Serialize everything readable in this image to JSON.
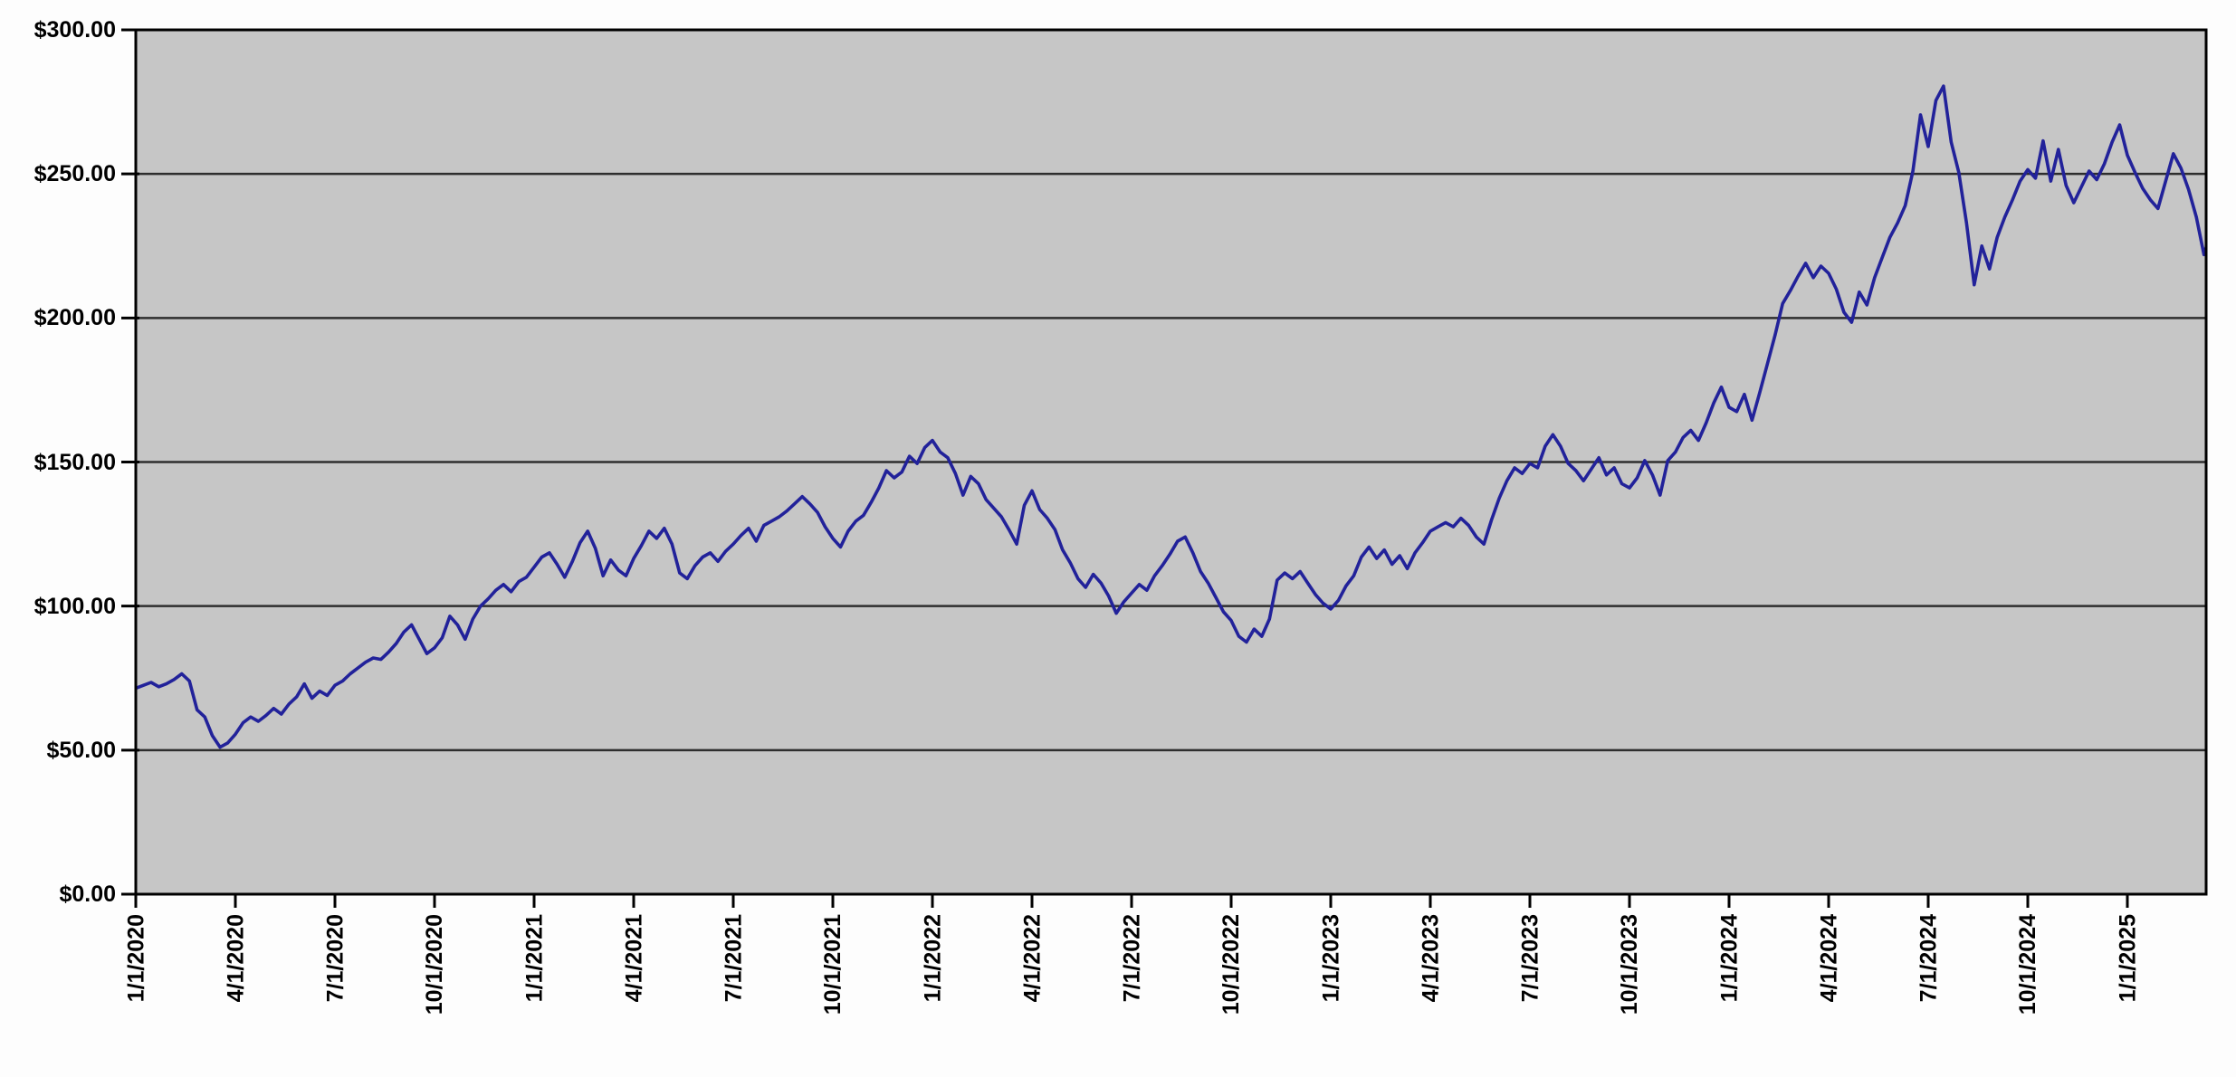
{
  "page": {
    "background_color": "#fdfdfd"
  },
  "chart_data": {
    "type": "line",
    "title": "",
    "legend": "none",
    "grid": "horizontal",
    "plot": {
      "background_color": "#c6c6c6",
      "border_color": "#000000",
      "gridline_color": "#2e2e2e"
    },
    "y_axis": {
      "min": 0,
      "max": 300,
      "step": 50,
      "format": "currency",
      "tick_labels": [
        "$300.00",
        "$250.00",
        "$200.00",
        "$150.00",
        "$100.00",
        "$50.00",
        "$0.00"
      ]
    },
    "x_axis": {
      "tick_interval": "quarterly",
      "label_rotation_deg": 90,
      "tick_labels": [
        "1/1/2020",
        "4/1/2020",
        "7/1/2020",
        "10/1/2020",
        "1/1/2021",
        "4/1/2021",
        "7/1/2021",
        "10/1/2021",
        "1/1/2022",
        "4/1/2022",
        "7/1/2022",
        "10/1/2022",
        "1/1/2023",
        "4/1/2023",
        "7/1/2023",
        "10/1/2023",
        "1/1/2024",
        "4/1/2024",
        "7/1/2024",
        "10/1/2024",
        "1/1/2025"
      ]
    },
    "series": [
      {
        "name": "price",
        "color": "#22229a",
        "sampling": "weekly",
        "start": "1/1/2020",
        "values": [
          71.5,
          72.5,
          73.5,
          72.0,
          73.0,
          74.5,
          76.5,
          74.0,
          64.0,
          61.5,
          55.0,
          51.0,
          52.5,
          55.5,
          59.5,
          61.5,
          60.0,
          62.0,
          64.5,
          62.5,
          66.0,
          68.5,
          73.0,
          68.0,
          70.5,
          69.0,
          72.5,
          74.0,
          76.5,
          78.5,
          80.5,
          82.0,
          81.5,
          84.0,
          87.0,
          91.0,
          93.5,
          88.5,
          83.5,
          85.5,
          89.0,
          96.5,
          93.5,
          88.5,
          95.5,
          100.0,
          102.5,
          105.5,
          107.5,
          105.0,
          108.5,
          110.0,
          113.5,
          117.0,
          118.5,
          114.5,
          110.0,
          115.5,
          122.0,
          126.0,
          120.0,
          110.5,
          116.0,
          112.5,
          110.5,
          116.5,
          121.0,
          126.0,
          123.5,
          127.0,
          121.5,
          111.5,
          109.5,
          114.0,
          117.0,
          118.5,
          115.5,
          119.0,
          121.5,
          124.5,
          127.0,
          122.5,
          128.0,
          129.5,
          131.0,
          133.0,
          135.5,
          138.0,
          135.5,
          132.5,
          127.5,
          123.5,
          120.5,
          126.0,
          129.5,
          131.5,
          136.0,
          141.0,
          147.0,
          144.5,
          146.5,
          152.0,
          149.5,
          155.0,
          157.5,
          153.5,
          151.5,
          146.0,
          138.5,
          145.0,
          142.5,
          137.0,
          134.0,
          131.0,
          126.5,
          121.5,
          135.0,
          140.0,
          133.5,
          130.5,
          126.5,
          119.5,
          115.0,
          109.5,
          106.5,
          111.0,
          108.0,
          103.5,
          97.5,
          101.5,
          104.5,
          107.5,
          105.5,
          110.5,
          114.0,
          118.0,
          122.5,
          124.0,
          118.5,
          112.0,
          108.0,
          103.0,
          98.0,
          95.0,
          89.5,
          87.5,
          92.0,
          89.5,
          95.5,
          109.0,
          111.5,
          109.5,
          112.0,
          108.0,
          104.0,
          101.0,
          99.0,
          102.0,
          107.0,
          110.5,
          117.0,
          120.5,
          116.5,
          119.5,
          114.5,
          117.5,
          113.0,
          118.5,
          122.0,
          126.0,
          127.5,
          129.0,
          127.5,
          130.5,
          128.0,
          124.0,
          121.5,
          130.0,
          137.5,
          143.5,
          148.0,
          146.0,
          149.5,
          148.0,
          155.5,
          159.5,
          155.5,
          149.5,
          147.0,
          143.5,
          147.5,
          151.5,
          145.5,
          148.0,
          142.5,
          141.0,
          144.5,
          150.5,
          145.5,
          138.5,
          150.5,
          153.5,
          158.5,
          161.0,
          157.5,
          163.5,
          170.5,
          176.0,
          169.0,
          167.5,
          173.5,
          164.5,
          174.0,
          184.0,
          194.0,
          205.0,
          209.5,
          214.5,
          219.0,
          214.0,
          218.0,
          215.5,
          210.0,
          202.0,
          198.5,
          209.0,
          204.5,
          214.0,
          221.0,
          228.0,
          233.0,
          239.0,
          251.0,
          270.5,
          259.5,
          275.5,
          280.5,
          261.0,
          250.5,
          233.0,
          211.5,
          225.0,
          217.0,
          228.0,
          235.0,
          241.0,
          247.5,
          251.5,
          248.5,
          261.5,
          247.5,
          258.5,
          246.0,
          240.0,
          245.5,
          251.0,
          248.0,
          253.5,
          261.0,
          267.0,
          256.5,
          250.5,
          245.0,
          241.0,
          238.0,
          247.5,
          257.0,
          252.0,
          244.5,
          235.0,
          222.0,
          230.5,
          226.0
        ]
      }
    ]
  }
}
